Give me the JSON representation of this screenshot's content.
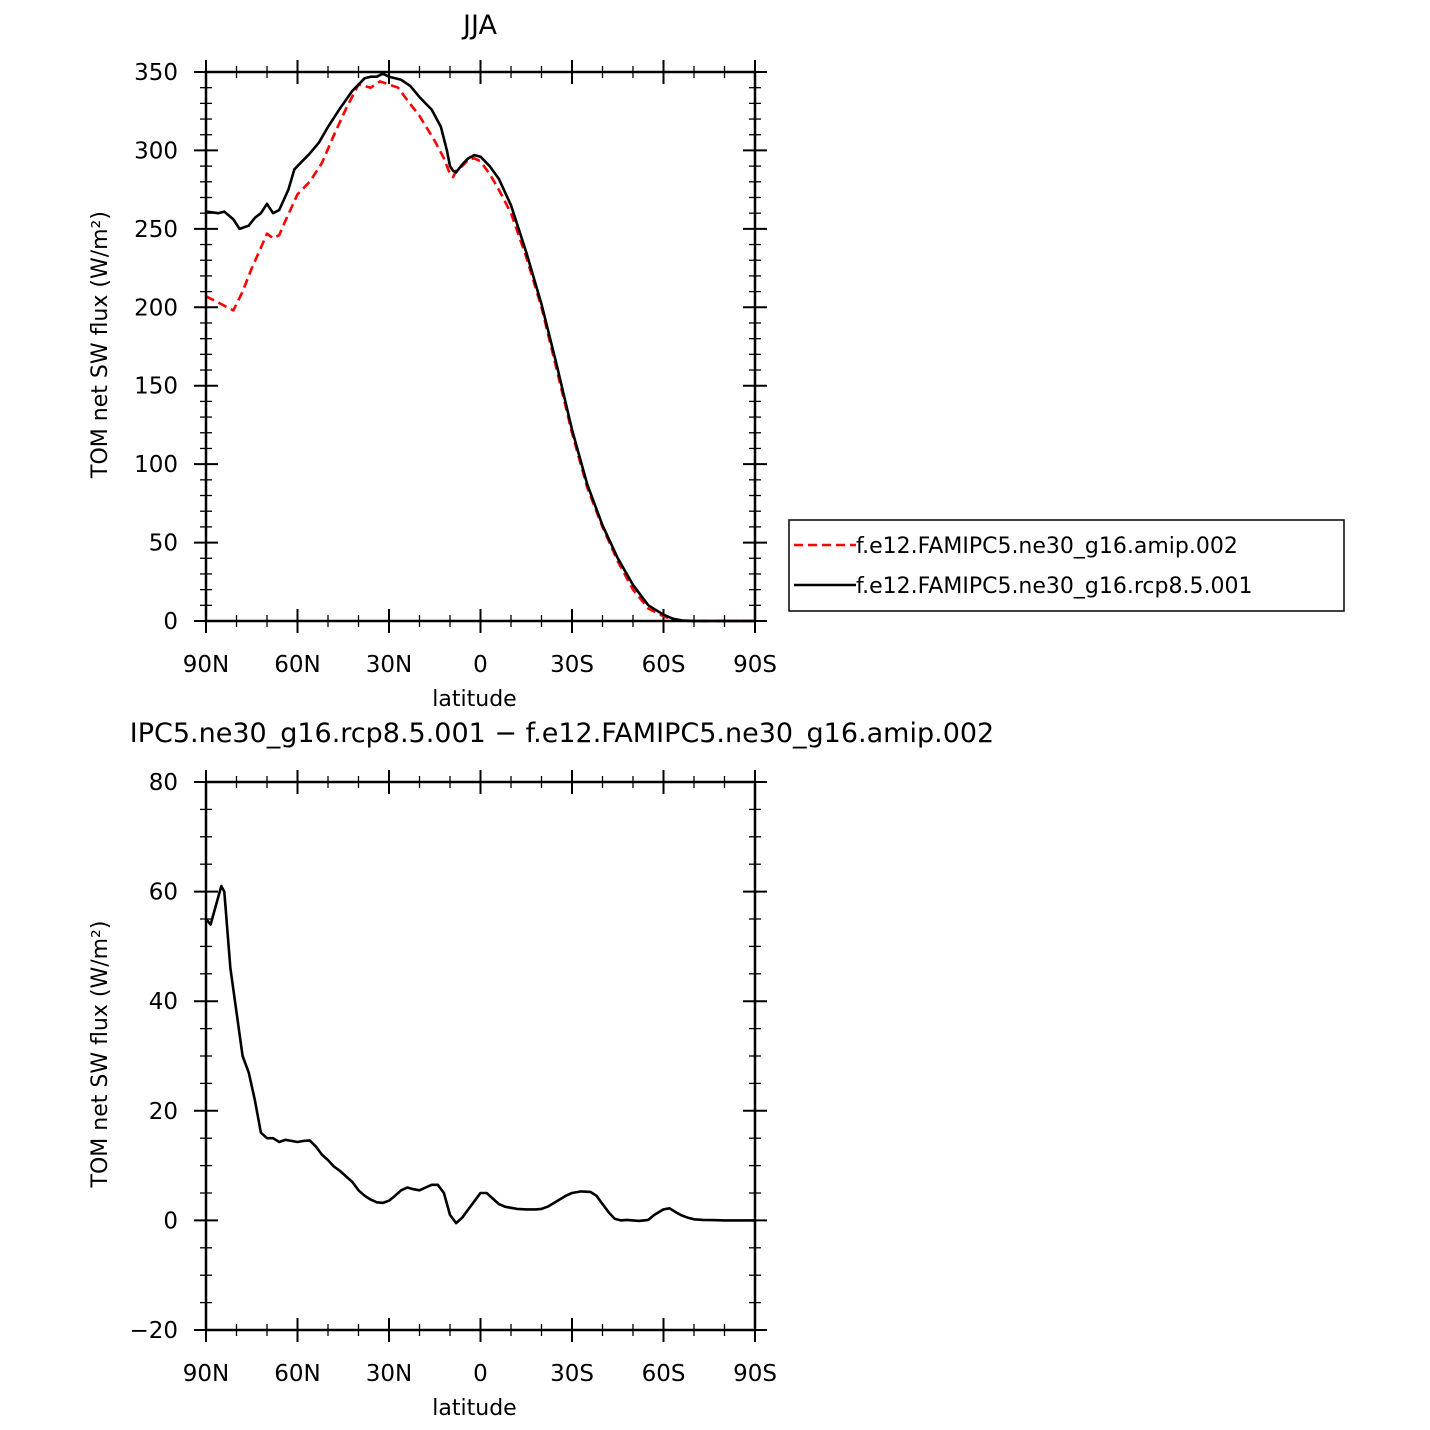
{
  "chart_data": [
    {
      "type": "line",
      "title": "JJA",
      "xlabel": "latitude",
      "ylabel": "TOM net SW flux (W/m²)",
      "x_tick_labels": [
        "90N",
        "60N",
        "30N",
        "0",
        "30S",
        "60S",
        "90S"
      ],
      "x_tick_values": [
        90,
        60,
        30,
        0,
        -30,
        -60,
        -90
      ],
      "xlim": [
        90,
        -90
      ],
      "ylim": [
        0,
        350
      ],
      "y_ticks": [
        0,
        50,
        100,
        150,
        200,
        250,
        300,
        350
      ],
      "legend_position": "right",
      "grid": false,
      "series": [
        {
          "name": "f.e12.FAMIPC5.ne30_g16.amip.002",
          "color": "#ff0000",
          "style": "dashed",
          "x": [
            90,
            85,
            81,
            78,
            75,
            72,
            70,
            68,
            66,
            64,
            60,
            56,
            52,
            48,
            44,
            40,
            36,
            33,
            30,
            27,
            24,
            20,
            15,
            12,
            10,
            9,
            8,
            6,
            4,
            2,
            0,
            -3,
            -6,
            -10,
            -15,
            -20,
            -25,
            -30,
            -35,
            -40,
            -45,
            -50,
            -55,
            -60,
            -63,
            -66,
            -70,
            -75,
            -80,
            -85,
            -90
          ],
          "values": [
            207,
            202,
            198,
            210,
            225,
            238,
            247,
            244,
            246,
            255,
            272,
            280,
            292,
            310,
            327,
            342,
            340,
            344,
            342,
            340,
            332,
            322,
            306,
            295,
            285,
            283,
            287,
            290,
            294,
            295,
            293,
            285,
            275,
            260,
            232,
            200,
            160,
            120,
            85,
            60,
            38,
            20,
            8,
            3,
            1,
            0.3,
            0,
            0,
            0,
            0,
            0
          ]
        },
        {
          "name": "f.e12.FAMIPC5.ne30_g16.rcp8.5.001",
          "color": "#000000",
          "style": "solid",
          "x": [
            90,
            86,
            84,
            81,
            79,
            76,
            74,
            72,
            70,
            68,
            66,
            63,
            61,
            58,
            56,
            53,
            50,
            46,
            42,
            38,
            36,
            34,
            32,
            30,
            28,
            26,
            23,
            20,
            16,
            13,
            11,
            10,
            9,
            8,
            6,
            4,
            2,
            0,
            -3,
            -6,
            -10,
            -15,
            -20,
            -25,
            -30,
            -35,
            -40,
            -45,
            -50,
            -55,
            -60,
            -63,
            -66,
            -70,
            -75,
            -80,
            -85,
            -90
          ],
          "values": [
            261,
            260,
            261,
            256,
            250,
            252,
            257,
            260,
            266,
            260,
            262,
            275,
            288,
            294,
            298,
            305,
            315,
            327,
            338,
            346,
            347,
            347,
            349,
            347,
            346,
            345,
            341,
            334,
            326,
            315,
            300,
            290,
            287,
            286,
            291,
            295,
            297,
            296,
            290,
            282,
            265,
            235,
            202,
            163,
            122,
            87,
            61,
            40,
            23,
            10,
            4,
            1.5,
            0.4,
            0,
            0,
            0,
            0,
            0
          ]
        }
      ]
    },
    {
      "type": "line",
      "title": "IPC5.ne30_g16.rcp8.5.001 − f.e12.FAMIPC5.ne30_g16.amip.002",
      "xlabel": "latitude",
      "ylabel": "TOM net SW flux (W/m²)",
      "x_tick_labels": [
        "90N",
        "60N",
        "30N",
        "0",
        "30S",
        "60S",
        "90S"
      ],
      "x_tick_values": [
        90,
        60,
        30,
        0,
        -30,
        -60,
        -90
      ],
      "xlim": [
        90,
        -90
      ],
      "ylim": [
        -20,
        80
      ],
      "y_ticks": [
        -20,
        0,
        20,
        40,
        60,
        80
      ],
      "grid": false,
      "series": [
        {
          "color": "#000000",
          "style": "solid",
          "x": [
            90,
            88.5,
            87,
            85,
            84,
            82,
            80,
            78,
            76,
            74,
            72,
            70,
            68,
            66,
            64,
            62,
            60,
            58,
            56,
            54,
            52,
            50,
            48,
            46,
            44,
            42,
            40,
            38,
            36,
            34,
            32,
            30,
            28,
            26,
            24,
            22,
            20,
            18,
            16,
            14,
            12,
            10,
            8,
            6,
            4,
            2,
            0,
            -2,
            -4,
            -6,
            -8,
            -10,
            -12,
            -15,
            -18,
            -20,
            -22,
            -25,
            -28,
            -30,
            -33,
            -36,
            -38,
            -40,
            -42,
            -44,
            -46,
            -48,
            -50,
            -52,
            -55,
            -57,
            -60,
            -62,
            -64,
            -66,
            -68,
            -70,
            -73,
            -76,
            -80,
            -85,
            -90
          ],
          "values": [
            55,
            54,
            57,
            61,
            60,
            46,
            38,
            30,
            27,
            22,
            16,
            15,
            15,
            14.3,
            14.7,
            14.5,
            14.3,
            14.5,
            14.6,
            13.5,
            12,
            11,
            9.8,
            9,
            8,
            7,
            5.5,
            4.5,
            3.8,
            3.3,
            3.2,
            3.6,
            4.5,
            5.5,
            6,
            5.7,
            5.5,
            6,
            6.5,
            6.5,
            5,
            1,
            -0.5,
            0.5,
            2,
            3.5,
            5,
            5,
            4,
            3,
            2.5,
            2.3,
            2.1,
            2,
            2,
            2.1,
            2.5,
            3.5,
            4.5,
            5,
            5.3,
            5.2,
            4.5,
            3,
            1.5,
            0.3,
            0,
            0.1,
            0,
            -0.1,
            0.1,
            1,
            2,
            2.2,
            1.5,
            0.9,
            0.5,
            0.2,
            0.1,
            0.05,
            0,
            0,
            0
          ]
        }
      ]
    }
  ]
}
